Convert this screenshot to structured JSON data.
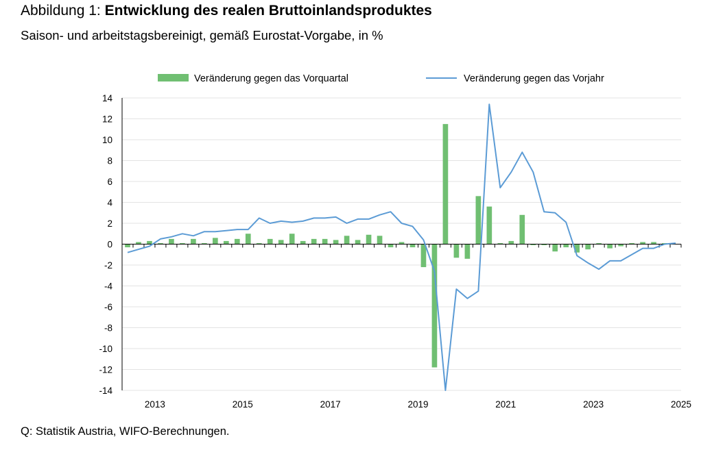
{
  "figure": {
    "title_prefix": "Abbildung 1: ",
    "title_bold": "Entwicklung des realen Bruttoinlandsproduktes",
    "subtitle": "Saison- und arbeitstagsbereinigt, gemäß Eurostat-Vorgabe, in %",
    "source": "Q: Statistik Austria, WIFO-Berechnungen."
  },
  "chart_data": {
    "type": "bar+line",
    "x": [
      "2012Q4",
      "2013Q1",
      "2013Q2",
      "2013Q3",
      "2013Q4",
      "2014Q1",
      "2014Q2",
      "2014Q3",
      "2014Q4",
      "2015Q1",
      "2015Q2",
      "2015Q3",
      "2015Q4",
      "2016Q1",
      "2016Q2",
      "2016Q3",
      "2016Q4",
      "2017Q1",
      "2017Q2",
      "2017Q3",
      "2017Q4",
      "2018Q1",
      "2018Q2",
      "2018Q3",
      "2018Q4",
      "2019Q1",
      "2019Q2",
      "2019Q3",
      "2019Q4",
      "2020Q1",
      "2020Q2",
      "2020Q3",
      "2020Q4",
      "2021Q1",
      "2021Q2",
      "2021Q3",
      "2021Q4",
      "2022Q1",
      "2022Q2",
      "2022Q3",
      "2022Q4",
      "2023Q1",
      "2023Q2",
      "2023Q3",
      "2023Q4",
      "2024Q1",
      "2024Q2",
      "2024Q3",
      "2024Q4",
      "2025Q1",
      "2025Q2"
    ],
    "x_tick_labels": [
      "2013",
      "2015",
      "2017",
      "2019",
      "2021",
      "2023",
      "2025"
    ],
    "x_tick_indices": [
      2.5,
      10.5,
      18.5,
      26.5,
      34.5,
      42.5,
      50.5
    ],
    "series": [
      {
        "name": "Veränderung gegen das Vorquartal",
        "kind": "bar",
        "color": "#70bf72",
        "values": [
          -0.3,
          0.2,
          0.3,
          0.1,
          0.5,
          0.1,
          0.5,
          0.1,
          0.6,
          0.3,
          0.5,
          1.0,
          0.1,
          0.5,
          0.4,
          1.0,
          0.3,
          0.5,
          0.5,
          0.4,
          0.8,
          0.4,
          0.9,
          0.8,
          -0.3,
          0.2,
          -0.3,
          -2.2,
          -11.8,
          11.5,
          -1.3,
          -1.4,
          4.6,
          3.6,
          0.1,
          0.3,
          2.8,
          -0.1,
          -0.1,
          -0.7,
          -0.3,
          -0.8,
          -0.5,
          0.1,
          -0.4,
          -0.2,
          0.1,
          0.2,
          0.2,
          0.1,
          0.0
        ]
      },
      {
        "name": "Veränderung gegen das Vorjahr",
        "kind": "line",
        "color": "#5b9bd5",
        "values": [
          -0.8,
          -0.5,
          -0.2,
          0.5,
          0.7,
          1.0,
          0.8,
          1.2,
          1.2,
          1.3,
          1.4,
          1.4,
          2.5,
          2.0,
          2.2,
          2.1,
          2.2,
          2.5,
          2.5,
          2.6,
          2.0,
          2.4,
          2.4,
          2.8,
          3.1,
          2.0,
          1.7,
          0.4,
          -2.6,
          -14.0,
          -4.3,
          -5.2,
          -4.5,
          13.4,
          5.4,
          6.9,
          8.8,
          6.9,
          3.1,
          3.0,
          2.1,
          -1.1,
          -1.8,
          -2.4,
          -1.6,
          -1.6,
          -1.0,
          -0.4,
          -0.4,
          0.0,
          0.1
        ]
      }
    ],
    "ylim": [
      -14,
      14
    ],
    "yticks": [
      14,
      12,
      10,
      8,
      6,
      4,
      2,
      0,
      -2,
      -4,
      -6,
      -8,
      -10,
      -12,
      -14
    ],
    "xlabel": "",
    "ylabel": "",
    "grid": true,
    "legend_position": "top"
  }
}
